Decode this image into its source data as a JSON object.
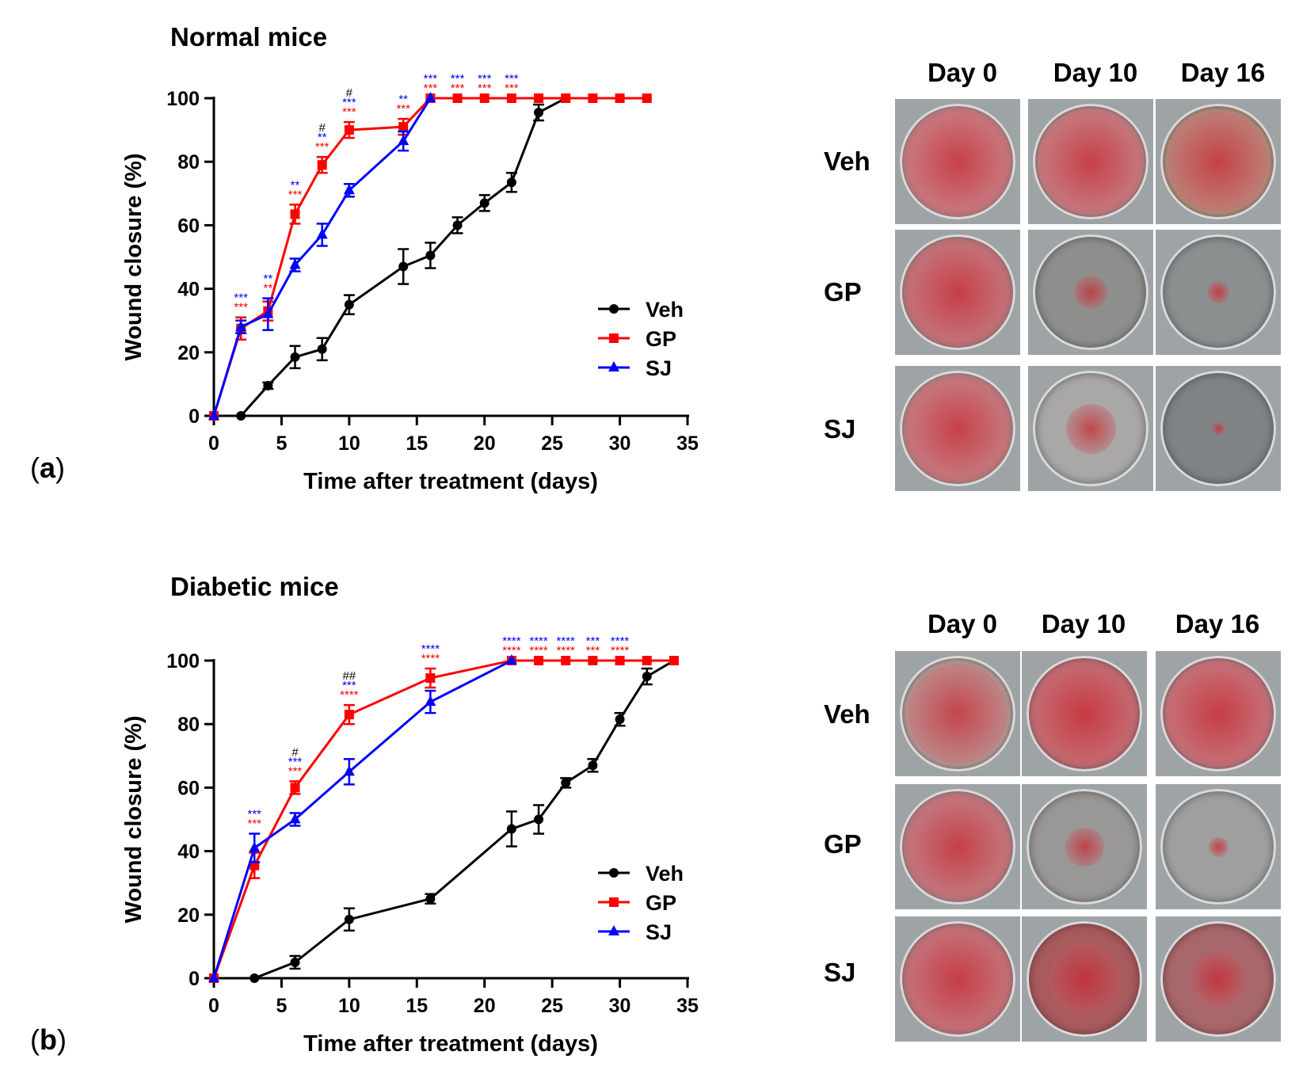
{
  "chart_data": [
    {
      "id": "a",
      "type": "line",
      "panel_label": "a",
      "title": "Normal mice",
      "xlabel": "Time after treatment (days)",
      "ylabel": "Wound closure (%)",
      "xlim": [
        0,
        35
      ],
      "ylim": [
        0,
        100
      ],
      "xticks": [
        "0",
        "5",
        "10",
        "15",
        "20",
        "25",
        "30",
        "35"
      ],
      "yticks": [
        "0",
        "20",
        "40",
        "60",
        "80",
        "100"
      ],
      "legend_position": "lower-right",
      "series": [
        {
          "name": "Veh",
          "color": "#000000",
          "marker": "circle",
          "x": [
            0,
            2,
            4,
            6,
            8,
            10,
            14,
            16,
            18,
            20,
            22,
            24,
            26,
            28,
            30,
            32
          ],
          "y": [
            0,
            0,
            9.5,
            18.5,
            21,
            35,
            47,
            50.5,
            60,
            67,
            73.5,
            95.5,
            100,
            100,
            100,
            100
          ],
          "err": [
            0,
            0,
            1,
            3.5,
            3.5,
            3,
            5.5,
            4,
            2.5,
            2.5,
            3,
            2.5,
            0,
            0,
            0,
            0
          ]
        },
        {
          "name": "GP",
          "color": "#ff0000",
          "marker": "square",
          "x": [
            0,
            2,
            4,
            6,
            8,
            10,
            14,
            16,
            18,
            20,
            22,
            24,
            26,
            28,
            30,
            32
          ],
          "y": [
            0,
            27.5,
            33,
            63.5,
            79,
            90,
            91,
            100,
            100,
            100,
            100,
            100,
            100,
            100,
            100,
            100
          ],
          "err": [
            0,
            3.5,
            3,
            3,
            2.5,
            2.5,
            2.5,
            0,
            0,
            0,
            0,
            0,
            0,
            0,
            0,
            0
          ]
        },
        {
          "name": "SJ",
          "color": "#0000ff",
          "marker": "triangle",
          "x": [
            0,
            2,
            4,
            6,
            8,
            10,
            14,
            16
          ],
          "y": [
            0,
            28,
            32,
            47.5,
            57,
            71,
            86.5,
            100
          ],
          "err": [
            0,
            2,
            5,
            2,
            3.5,
            2,
            3,
            0
          ]
        }
      ],
      "annotations": [
        {
          "x": 2,
          "lines": [
            {
              "text": "***",
              "color": "#0000ff"
            },
            {
              "text": "***",
              "color": "#ff0000"
            }
          ]
        },
        {
          "x": 4,
          "lines": [
            {
              "text": "**",
              "color": "#0000ff"
            },
            {
              "text": "**",
              "color": "#ff0000"
            }
          ]
        },
        {
          "x": 6,
          "lines": [
            {
              "text": "**",
              "color": "#0000ff"
            },
            {
              "text": "***",
              "color": "#ff0000"
            }
          ]
        },
        {
          "x": 8,
          "lines": [
            {
              "text": "#",
              "color": "#000000"
            },
            {
              "text": "**",
              "color": "#0000ff"
            },
            {
              "text": "***",
              "color": "#ff0000"
            }
          ]
        },
        {
          "x": 10,
          "lines": [
            {
              "text": "#",
              "color": "#000000"
            },
            {
              "text": "***",
              "color": "#0000ff"
            },
            {
              "text": "***",
              "color": "#ff0000"
            }
          ]
        },
        {
          "x": 14,
          "lines": [
            {
              "text": "**",
              "color": "#0000ff"
            },
            {
              "text": "***",
              "color": "#ff0000"
            }
          ]
        },
        {
          "x": 16,
          "lines": [
            {
              "text": "***",
              "color": "#0000ff"
            },
            {
              "text": "***",
              "color": "#ff0000"
            }
          ]
        },
        {
          "x": 18,
          "lines": [
            {
              "text": "***",
              "color": "#0000ff"
            },
            {
              "text": "***",
              "color": "#ff0000"
            }
          ]
        },
        {
          "x": 20,
          "lines": [
            {
              "text": "***",
              "color": "#0000ff"
            },
            {
              "text": "***",
              "color": "#ff0000"
            }
          ]
        },
        {
          "x": 22,
          "lines": [
            {
              "text": "***",
              "color": "#0000ff"
            },
            {
              "text": "***",
              "color": "#ff0000"
            }
          ]
        }
      ]
    },
    {
      "id": "b",
      "type": "line",
      "panel_label": "b",
      "title": "Diabetic mice",
      "xlabel": "Time after treatment (days)",
      "ylabel": "Wound closure (%)",
      "xlim": [
        0,
        35
      ],
      "ylim": [
        0,
        100
      ],
      "xticks": [
        "0",
        "5",
        "10",
        "15",
        "20",
        "25",
        "30",
        "35"
      ],
      "yticks": [
        "0",
        "20",
        "40",
        "60",
        "80",
        "100"
      ],
      "legend_position": "lower-right",
      "series": [
        {
          "name": "Veh",
          "color": "#000000",
          "marker": "circle",
          "x": [
            0,
            3,
            6,
            10,
            16,
            22,
            24,
            26,
            28,
            30,
            32,
            34
          ],
          "y": [
            0,
            0,
            5,
            18.5,
            25,
            47,
            50,
            61.5,
            67,
            81.5,
            95,
            100
          ],
          "err": [
            0,
            0,
            2,
            3.5,
            1.5,
            5.5,
            4.5,
            1.5,
            2,
            2,
            2.5,
            0
          ]
        },
        {
          "name": "GP",
          "color": "#ff0000",
          "marker": "square",
          "x": [
            0,
            3,
            6,
            10,
            16,
            22,
            24,
            26,
            28,
            30,
            32,
            34
          ],
          "y": [
            0,
            35.5,
            60,
            83,
            94.5,
            100,
            100,
            100,
            100,
            100,
            100,
            100
          ],
          "err": [
            0,
            4,
            2,
            3,
            3,
            0,
            0,
            0,
            0,
            0,
            0,
            0
          ]
        },
        {
          "name": "SJ",
          "color": "#0000ff",
          "marker": "triangle",
          "x": [
            0,
            3,
            6,
            10,
            16,
            22
          ],
          "y": [
            0,
            41,
            50,
            65,
            87,
            100
          ],
          "err": [
            0,
            4.5,
            2,
            4,
            3.5,
            0
          ]
        }
      ],
      "annotations": [
        {
          "x": 3,
          "lines": [
            {
              "text": "***",
              "color": "#0000ff"
            },
            {
              "text": "***",
              "color": "#ff0000"
            }
          ]
        },
        {
          "x": 6,
          "lines": [
            {
              "text": "#",
              "color": "#000000"
            },
            {
              "text": "***",
              "color": "#0000ff"
            },
            {
              "text": "***",
              "color": "#ff0000"
            }
          ]
        },
        {
          "x": 10,
          "lines": [
            {
              "text": "##",
              "color": "#000000"
            },
            {
              "text": "***",
              "color": "#0000ff"
            },
            {
              "text": "****",
              "color": "#ff0000"
            }
          ]
        },
        {
          "x": 16,
          "lines": [
            {
              "text": "****",
              "color": "#0000ff"
            },
            {
              "text": "****",
              "color": "#ff0000"
            }
          ]
        },
        {
          "x": 22,
          "lines": [
            {
              "text": "****",
              "color": "#0000ff"
            },
            {
              "text": "****",
              "color": "#ff0000"
            }
          ]
        },
        {
          "x": 24,
          "lines": [
            {
              "text": "****",
              "color": "#0000ff"
            },
            {
              "text": "****",
              "color": "#ff0000"
            }
          ]
        },
        {
          "x": 26,
          "lines": [
            {
              "text": "****",
              "color": "#0000ff"
            },
            {
              "text": "****",
              "color": "#ff0000"
            }
          ]
        },
        {
          "x": 28,
          "lines": [
            {
              "text": "***",
              "color": "#0000ff"
            },
            {
              "text": "***",
              "color": "#ff0000"
            }
          ]
        },
        {
          "x": 30,
          "lines": [
            {
              "text": "****",
              "color": "#0000ff"
            },
            {
              "text": "****",
              "color": "#ff0000"
            }
          ]
        }
      ]
    }
  ],
  "photos": [
    {
      "panel": "a",
      "columns": [
        "Day 0",
        "Day 10",
        "Day 16"
      ],
      "rows": [
        "Veh",
        "GP",
        "SJ"
      ]
    },
    {
      "panel": "b",
      "columns": [
        "Day 0",
        "Day 10",
        "Day 16"
      ],
      "rows": [
        "Veh",
        "GP",
        "SJ"
      ]
    }
  ]
}
